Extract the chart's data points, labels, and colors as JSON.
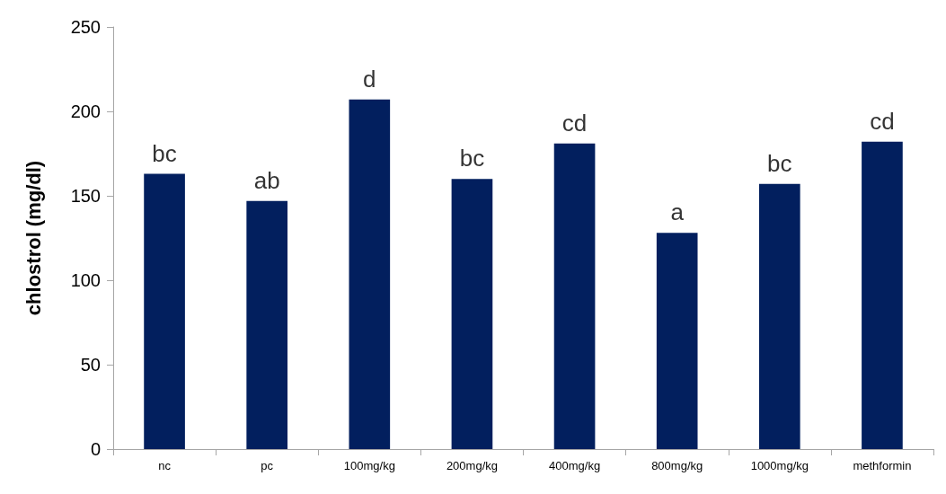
{
  "chart_data": {
    "type": "bar",
    "ylabel": "chlostrol (mg/dl)",
    "categories": [
      "nc",
      "pc",
      "100mg/kg",
      "200mg/kg",
      "400mg/kg",
      "800mg/kg",
      "1000mg/kg",
      "methformin"
    ],
    "values": [
      163,
      147,
      207,
      160,
      181,
      128,
      157,
      182
    ],
    "color": "#021f5e",
    "ylim": [
      0,
      250
    ],
    "yticks": [
      0,
      50,
      100,
      150,
      200,
      250
    ],
    "grid": false,
    "annotations": [
      {
        "text": "bc",
        "x": "nc",
        "y": 163
      },
      {
        "text": "ab",
        "x": "pc",
        "y": 147
      },
      {
        "text": "d",
        "x": "100mg/kg",
        "y": 207
      },
      {
        "text": "bc",
        "x": "200mg/kg",
        "y": 160
      },
      {
        "text": "cd",
        "x": "400mg/kg",
        "y": 181
      },
      {
        "text": "a",
        "x": "800mg/kg",
        "y": 128
      },
      {
        "text": "bc",
        "x": "1000mg/kg",
        "y": 157
      },
      {
        "text": "cd",
        "x": "methformin",
        "y": 182
      }
    ]
  }
}
